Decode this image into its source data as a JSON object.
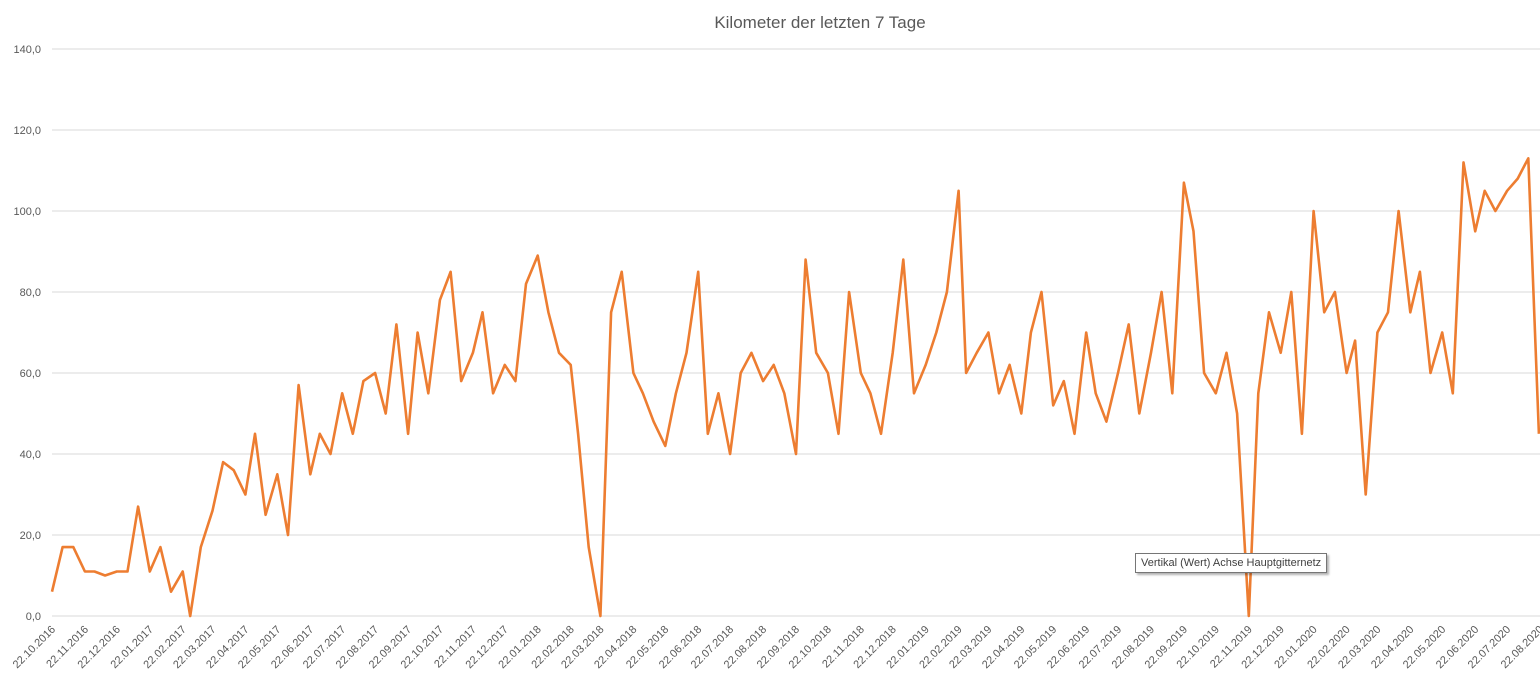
{
  "chart_data": {
    "type": "line",
    "title": "Kilometer der letzten 7 Tage",
    "xlabel": "",
    "ylabel": "",
    "ylim": [
      0,
      140
    ],
    "y_ticks": [
      "0,0",
      "20,0",
      "40,0",
      "60,0",
      "80,0",
      "100,0",
      "120,0",
      "140,0"
    ],
    "xlim": [
      "2016-10-22",
      "2020-08-22"
    ],
    "x_ticks": [
      "22.10.2016",
      "22.11.2016",
      "22.12.2016",
      "22.01.2017",
      "22.02.2017",
      "22.03.2017",
      "22.04.2017",
      "22.05.2017",
      "22.06.2017",
      "22.07.2017",
      "22.08.2017",
      "22.09.2017",
      "22.10.2017",
      "22.11.2017",
      "22.12.2017",
      "22.01.2018",
      "22.02.2018",
      "22.03.2018",
      "22.04.2018",
      "22.05.2018",
      "22.06.2018",
      "22.07.2018",
      "22.08.2018",
      "22.09.2018",
      "22.10.2018",
      "22.11.2018",
      "22.12.2018",
      "22.01.2019",
      "22.02.2019",
      "22.03.2019",
      "22.04.2019",
      "22.05.2019",
      "22.06.2019",
      "22.07.2019",
      "22.08.2019",
      "22.09.2019",
      "22.10.2019",
      "22.11.2019",
      "22.12.2019",
      "22.01.2020",
      "22.02.2020",
      "22.03.2020",
      "22.04.2020",
      "22.05.2020",
      "22.06.2020",
      "22.07.2020",
      "22.08.2020"
    ],
    "grid": "horizontal",
    "legend": "none",
    "color": "#ED7D31",
    "gridline_color": "#D9D9D9",
    "series": [
      {
        "points": [
          [
            "2016-10-22",
            6
          ],
          [
            "2016-11-01",
            17
          ],
          [
            "2016-11-11",
            17
          ],
          [
            "2016-11-22",
            11
          ],
          [
            "2016-12-01",
            11
          ],
          [
            "2016-12-11",
            10
          ],
          [
            "2016-12-22",
            11
          ],
          [
            "2017-01-01",
            11
          ],
          [
            "2017-01-11",
            27
          ],
          [
            "2017-01-22",
            11
          ],
          [
            "2017-02-01",
            17
          ],
          [
            "2017-02-11",
            6
          ],
          [
            "2017-02-22",
            11
          ],
          [
            "2017-03-01",
            0
          ],
          [
            "2017-03-11",
            17
          ],
          [
            "2017-03-22",
            26
          ],
          [
            "2017-04-01",
            38
          ],
          [
            "2017-04-11",
            36
          ],
          [
            "2017-04-22",
            30
          ],
          [
            "2017-05-01",
            45
          ],
          [
            "2017-05-11",
            25
          ],
          [
            "2017-05-22",
            35
          ],
          [
            "2017-06-01",
            20
          ],
          [
            "2017-06-11",
            57
          ],
          [
            "2017-06-22",
            35
          ],
          [
            "2017-07-01",
            45
          ],
          [
            "2017-07-11",
            40
          ],
          [
            "2017-07-22",
            55
          ],
          [
            "2017-08-01",
            45
          ],
          [
            "2017-08-11",
            58
          ],
          [
            "2017-08-22",
            60
          ],
          [
            "2017-09-01",
            50
          ],
          [
            "2017-09-11",
            72
          ],
          [
            "2017-09-22",
            45
          ],
          [
            "2017-10-01",
            70
          ],
          [
            "2017-10-11",
            55
          ],
          [
            "2017-10-22",
            78
          ],
          [
            "2017-11-01",
            85
          ],
          [
            "2017-11-11",
            58
          ],
          [
            "2017-11-22",
            65
          ],
          [
            "2017-12-01",
            75
          ],
          [
            "2017-12-11",
            55
          ],
          [
            "2017-12-22",
            62
          ],
          [
            "2018-01-01",
            58
          ],
          [
            "2018-01-11",
            82
          ],
          [
            "2018-01-22",
            89
          ],
          [
            "2018-02-01",
            75
          ],
          [
            "2018-02-11",
            65
          ],
          [
            "2018-02-22",
            62
          ],
          [
            "2018-03-01",
            45
          ],
          [
            "2018-03-11",
            17
          ],
          [
            "2018-03-22",
            0
          ],
          [
            "2018-04-01",
            75
          ],
          [
            "2018-04-11",
            85
          ],
          [
            "2018-04-22",
            60
          ],
          [
            "2018-05-01",
            55
          ],
          [
            "2018-05-11",
            48
          ],
          [
            "2018-05-22",
            42
          ],
          [
            "2018-06-01",
            55
          ],
          [
            "2018-06-11",
            65
          ],
          [
            "2018-06-22",
            85
          ],
          [
            "2018-07-01",
            45
          ],
          [
            "2018-07-11",
            55
          ],
          [
            "2018-07-22",
            40
          ],
          [
            "2018-08-01",
            60
          ],
          [
            "2018-08-11",
            65
          ],
          [
            "2018-08-22",
            58
          ],
          [
            "2018-09-01",
            62
          ],
          [
            "2018-09-11",
            55
          ],
          [
            "2018-09-22",
            40
          ],
          [
            "2018-10-01",
            88
          ],
          [
            "2018-10-11",
            65
          ],
          [
            "2018-10-22",
            60
          ],
          [
            "2018-11-01",
            45
          ],
          [
            "2018-11-11",
            80
          ],
          [
            "2018-11-22",
            60
          ],
          [
            "2018-12-01",
            55
          ],
          [
            "2018-12-11",
            45
          ],
          [
            "2018-12-22",
            65
          ],
          [
            "2019-01-01",
            88
          ],
          [
            "2019-01-11",
            55
          ],
          [
            "2019-01-22",
            62
          ],
          [
            "2019-02-01",
            70
          ],
          [
            "2019-02-11",
            80
          ],
          [
            "2019-02-22",
            105
          ],
          [
            "2019-03-01",
            60
          ],
          [
            "2019-03-11",
            65
          ],
          [
            "2019-03-22",
            70
          ],
          [
            "2019-04-01",
            55
          ],
          [
            "2019-04-11",
            62
          ],
          [
            "2019-04-22",
            50
          ],
          [
            "2019-05-01",
            70
          ],
          [
            "2019-05-11",
            80
          ],
          [
            "2019-05-22",
            52
          ],
          [
            "2019-06-01",
            58
          ],
          [
            "2019-06-11",
            45
          ],
          [
            "2019-06-22",
            70
          ],
          [
            "2019-07-01",
            55
          ],
          [
            "2019-07-11",
            48
          ],
          [
            "2019-07-22",
            60
          ],
          [
            "2019-08-01",
            72
          ],
          [
            "2019-08-11",
            50
          ],
          [
            "2019-08-22",
            65
          ],
          [
            "2019-09-01",
            80
          ],
          [
            "2019-09-11",
            55
          ],
          [
            "2019-09-22",
            107
          ],
          [
            "2019-10-01",
            95
          ],
          [
            "2019-10-11",
            60
          ],
          [
            "2019-10-22",
            55
          ],
          [
            "2019-11-01",
            65
          ],
          [
            "2019-11-11",
            50
          ],
          [
            "2019-11-22",
            0
          ],
          [
            "2019-12-01",
            55
          ],
          [
            "2019-12-11",
            75
          ],
          [
            "2019-12-22",
            65
          ],
          [
            "2020-01-01",
            80
          ],
          [
            "2020-01-11",
            45
          ],
          [
            "2020-01-22",
            100
          ],
          [
            "2020-02-01",
            75
          ],
          [
            "2020-02-11",
            80
          ],
          [
            "2020-02-22",
            60
          ],
          [
            "2020-03-01",
            68
          ],
          [
            "2020-03-11",
            30
          ],
          [
            "2020-03-22",
            70
          ],
          [
            "2020-04-01",
            75
          ],
          [
            "2020-04-11",
            100
          ],
          [
            "2020-04-22",
            75
          ],
          [
            "2020-05-01",
            85
          ],
          [
            "2020-05-11",
            60
          ],
          [
            "2020-05-22",
            70
          ],
          [
            "2020-06-01",
            55
          ],
          [
            "2020-06-11",
            112
          ],
          [
            "2020-06-22",
            95
          ],
          [
            "2020-07-01",
            105
          ],
          [
            "2020-07-11",
            100
          ],
          [
            "2020-07-22",
            105
          ],
          [
            "2020-08-01",
            108
          ],
          [
            "2020-08-11",
            113
          ],
          [
            "2020-08-21",
            45
          ]
        ]
      }
    ]
  },
  "tooltip": "Vertikal (Wert) Achse Hauptgitternetz"
}
